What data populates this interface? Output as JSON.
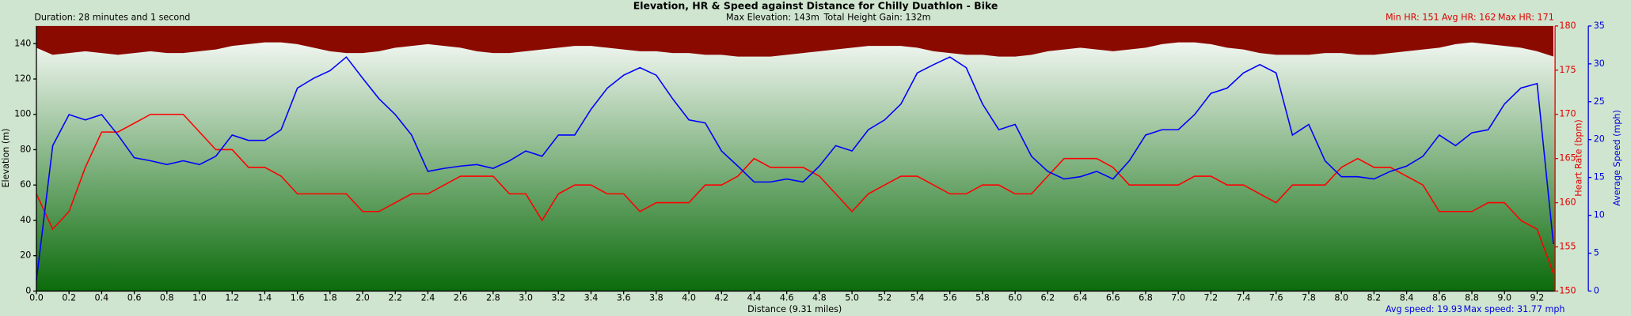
{
  "chart_data": {
    "type": "line",
    "title": "Elevation, HR & Speed against Distance for Chilly Duathlon - Bike",
    "header_left": "Duration: 28 minutes and 1 second",
    "header_center": [
      "Max Elevation: 143m",
      "Total Height Gain: 132m"
    ],
    "header_right": [
      "Min HR: 151",
      "Avg HR: 162",
      "Max HR: 171"
    ],
    "footer_right": [
      "Avg speed: 19.93",
      "Max speed: 31.77 mph"
    ],
    "x_label": "Distance (9.31 miles)",
    "y_label": "Elevation (m)",
    "y2_label": "Heart Rate (bpm)",
    "y3_label": "Average Speed (mph)",
    "x": [
      0,
      0.1,
      0.2,
      0.3,
      0.4,
      0.5,
      0.6,
      0.7,
      0.8,
      0.9,
      1.0,
      1.1,
      1.2,
      1.3,
      1.4,
      1.5,
      1.6,
      1.7,
      1.8,
      1.9,
      2.0,
      2.1,
      2.2,
      2.3,
      2.4,
      2.5,
      2.6,
      2.7,
      2.8,
      2.9,
      3.0,
      3.1,
      3.2,
      3.3,
      3.4,
      3.5,
      3.6,
      3.7,
      3.8,
      3.9,
      4.0,
      4.1,
      4.2,
      4.3,
      4.4,
      4.5,
      4.6,
      4.7,
      4.8,
      4.9,
      5.0,
      5.1,
      5.2,
      5.3,
      5.4,
      5.5,
      5.6,
      5.7,
      5.8,
      5.9,
      6.0,
      6.1,
      6.2,
      6.3,
      6.4,
      6.5,
      6.6,
      6.7,
      6.8,
      6.9,
      7.0,
      7.1,
      7.2,
      7.3,
      7.4,
      7.5,
      7.6,
      7.7,
      7.8,
      7.9,
      8.0,
      8.1,
      8.2,
      8.3,
      8.4,
      8.5,
      8.6,
      8.7,
      8.8,
      8.9,
      9.0,
      9.1,
      9.2,
      9.3
    ],
    "series": [
      {
        "name": "Elevation",
        "color": "#8b0a00",
        "axis": "y",
        "values": [
          138,
          134,
          135,
          136,
          135,
          134,
          135,
          136,
          135,
          135,
          136,
          137,
          139,
          140,
          141,
          141,
          140,
          138,
          136,
          135,
          135,
          136,
          138,
          139,
          140,
          139,
          138,
          136,
          135,
          135,
          136,
          137,
          138,
          139,
          139,
          138,
          137,
          136,
          136,
          135,
          135,
          134,
          134,
          133,
          133,
          133,
          134,
          135,
          136,
          137,
          138,
          139,
          139,
          139,
          138,
          136,
          135,
          134,
          134,
          133,
          133,
          134,
          136,
          137,
          138,
          137,
          136,
          137,
          138,
          140,
          141,
          141,
          140,
          138,
          137,
          135,
          134,
          134,
          134,
          135,
          135,
          134,
          134,
          135,
          136,
          137,
          138,
          140,
          141,
          140,
          139,
          138,
          136,
          133
        ]
      },
      {
        "name": "Heart Rate",
        "color": "#ff0000",
        "axis": "y2",
        "values": [
          161,
          157,
          159,
          164,
          168,
          168,
          169,
          170,
          170,
          170,
          168,
          166,
          166,
          164,
          164,
          163,
          161,
          161,
          161,
          161,
          159,
          159,
          160,
          161,
          161,
          162,
          163,
          163,
          163,
          161,
          161,
          158,
          161,
          162,
          162,
          161,
          161,
          159,
          160,
          160,
          160,
          162,
          162,
          163,
          165,
          164,
          164,
          164,
          163,
          161,
          159,
          161,
          162,
          163,
          163,
          162,
          161,
          161,
          162,
          162,
          161,
          161,
          163,
          165,
          165,
          165,
          164,
          162,
          162,
          162,
          162,
          163,
          163,
          162,
          162,
          161,
          160,
          162,
          162,
          162,
          164,
          165,
          164,
          164,
          163,
          162,
          159,
          159,
          159,
          160,
          160,
          158,
          157,
          152
        ]
      },
      {
        "name": "Average Speed",
        "color": "#0000ff",
        "axis": "y3",
        "values": [
          1.4,
          19.2,
          23.3,
          22.6,
          23.3,
          20.6,
          17.6,
          17.2,
          16.7,
          17.2,
          16.7,
          17.8,
          20.6,
          19.9,
          19.9,
          21.3,
          26.8,
          28.1,
          29.1,
          30.9,
          28.1,
          25.4,
          23.3,
          20.6,
          15.8,
          16.2,
          16.5,
          16.7,
          16.2,
          17.2,
          18.5,
          17.8,
          20.6,
          20.6,
          24.0,
          26.8,
          28.5,
          29.5,
          28.5,
          25.4,
          22.6,
          22.2,
          18.5,
          16.5,
          14.4,
          14.4,
          14.8,
          14.4,
          16.5,
          19.2,
          18.5,
          21.3,
          22.6,
          24.7,
          28.8,
          29.9,
          30.9,
          29.5,
          24.7,
          21.3,
          22.0,
          17.8,
          15.8,
          14.8,
          15.1,
          15.8,
          14.8,
          17.2,
          20.6,
          21.3,
          21.3,
          23.3,
          26.1,
          26.8,
          28.8,
          29.9,
          28.8,
          20.6,
          22.0,
          17.2,
          15.1,
          15.1,
          14.8,
          15.8,
          16.5,
          17.8,
          20.6,
          19.2,
          20.9,
          21.3,
          24.7,
          26.8,
          27.4,
          6.2
        ]
      }
    ],
    "xlim": [
      0,
      9.31
    ],
    "xticks": [
      {
        "value": 0,
        "label": "0.0"
      },
      {
        "value": 0.2,
        "label": "0.2"
      },
      {
        "value": 0.4,
        "label": "0.4"
      },
      {
        "value": 0.6,
        "label": "0.6"
      },
      {
        "value": 0.8,
        "label": "0.8"
      },
      {
        "value": 1,
        "label": "1.0"
      },
      {
        "value": 1.2,
        "label": "1.2"
      },
      {
        "value": 1.4,
        "label": "1.4"
      },
      {
        "value": 1.6,
        "label": "1.6"
      },
      {
        "value": 1.8,
        "label": "1.8"
      },
      {
        "value": 2,
        "label": "2.0"
      },
      {
        "value": 2.2,
        "label": "2.2"
      },
      {
        "value": 2.4,
        "label": "2.4"
      },
      {
        "value": 2.6,
        "label": "2.6"
      },
      {
        "value": 2.8,
        "label": "2.8"
      },
      {
        "value": 3,
        "label": "3.0"
      },
      {
        "value": 3.2,
        "label": "3.2"
      },
      {
        "value": 3.4,
        "label": "3.4"
      },
      {
        "value": 3.6,
        "label": "3.6"
      },
      {
        "value": 3.8,
        "label": "3.8"
      },
      {
        "value": 4,
        "label": "4.0"
      },
      {
        "value": 4.2,
        "label": "4.2"
      },
      {
        "value": 4.4,
        "label": "4.4"
      },
      {
        "value": 4.6,
        "label": "4.6"
      },
      {
        "value": 4.8,
        "label": "4.8"
      },
      {
        "value": 5,
        "label": "5.0"
      },
      {
        "value": 5.2,
        "label": "5.2"
      },
      {
        "value": 5.4,
        "label": "5.4"
      },
      {
        "value": 5.6,
        "label": "5.6"
      },
      {
        "value": 5.8,
        "label": "5.8"
      },
      {
        "value": 6,
        "label": "6.0"
      },
      {
        "value": 6.2,
        "label": "6.2"
      },
      {
        "value": 6.4,
        "label": "6.4"
      },
      {
        "value": 6.6,
        "label": "6.6"
      },
      {
        "value": 6.8,
        "label": "6.8"
      },
      {
        "value": 7,
        "label": "7.0"
      },
      {
        "value": 7.2,
        "label": "7.2"
      },
      {
        "value": 7.4,
        "label": "7.4"
      },
      {
        "value": 7.6,
        "label": "7.6"
      },
      {
        "value": 7.8,
        "label": "7.8"
      },
      {
        "value": 8,
        "label": "8.0"
      },
      {
        "value": 8.2,
        "label": "8.2"
      },
      {
        "value": 8.4,
        "label": "8.4"
      },
      {
        "value": 8.6,
        "label": "8.6"
      },
      {
        "value": 8.8,
        "label": "8.8"
      },
      {
        "value": 9,
        "label": "9.0"
      },
      {
        "value": 9.2,
        "label": "9.2"
      }
    ],
    "ylim": [
      0,
      150
    ],
    "yticks": [
      0,
      20,
      40,
      60,
      80,
      100,
      120,
      140
    ],
    "y2lim": [
      150,
      180
    ],
    "y2ticks": [
      150,
      155,
      160,
      165,
      170,
      175,
      180
    ],
    "y3lim": [
      0,
      35
    ],
    "y3ticks": [
      0,
      5,
      10,
      15,
      20,
      25,
      30,
      35
    ],
    "elevation_fill": "#8b0a00",
    "gradient": [
      "#ffffff",
      "#0b6b0b"
    ]
  }
}
